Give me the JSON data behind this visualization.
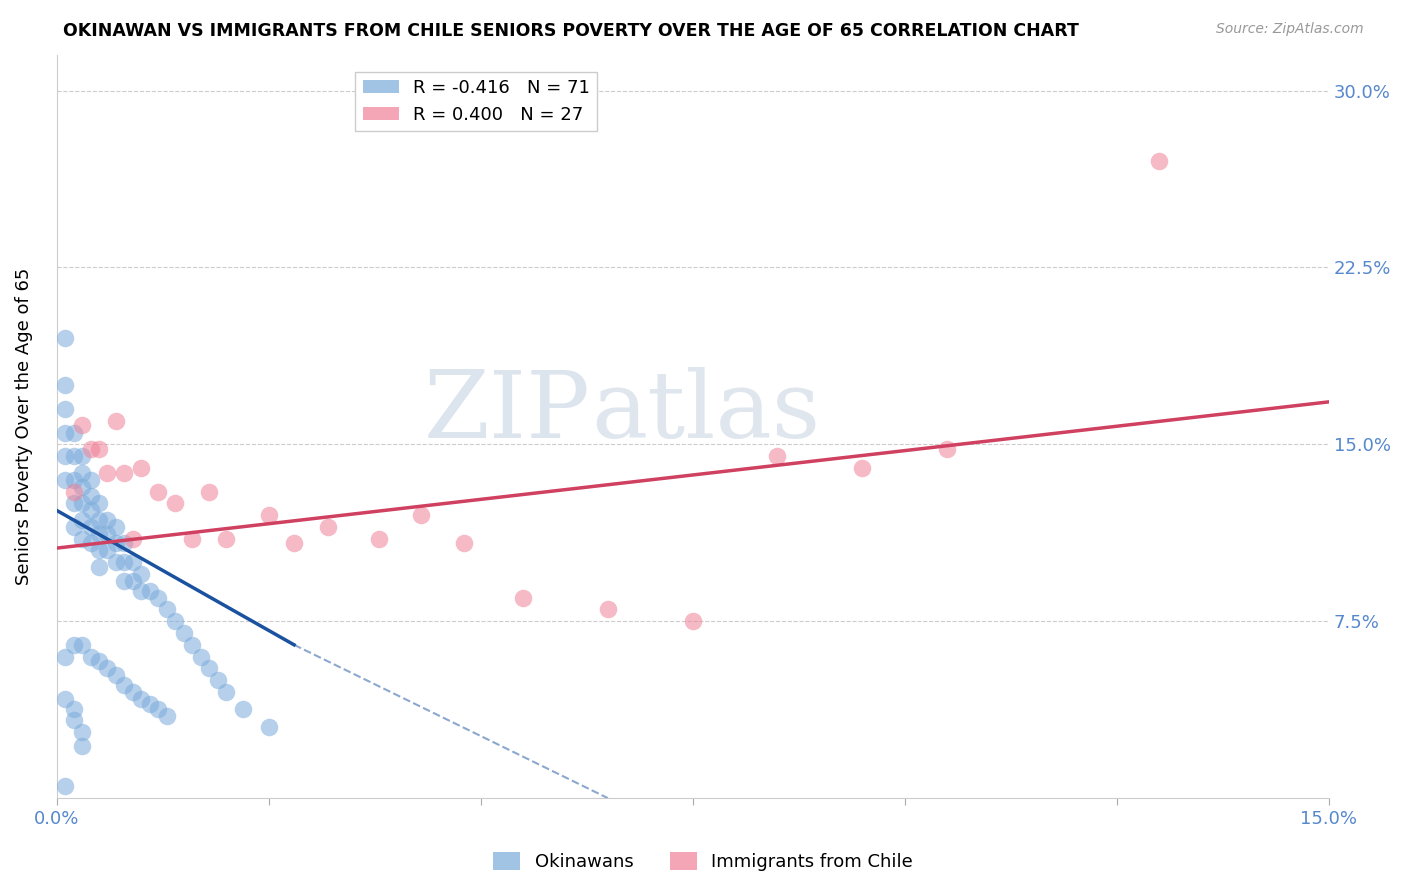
{
  "title": "OKINAWAN VS IMMIGRANTS FROM CHILE SENIORS POVERTY OVER THE AGE OF 65 CORRELATION CHART",
  "source": "Source: ZipAtlas.com",
  "ylabel": "Seniors Poverty Over the Age of 65",
  "xlim": [
    0.0,
    0.15
  ],
  "ylim": [
    0.0,
    0.315
  ],
  "xticks": [
    0.0,
    0.025,
    0.05,
    0.075,
    0.1,
    0.125,
    0.15
  ],
  "yticks": [
    0.0,
    0.075,
    0.15,
    0.225,
    0.3
  ],
  "ytick_labels": [
    "",
    "7.5%",
    "15.0%",
    "22.5%",
    "30.0%"
  ],
  "xtick_labels": [
    "0.0%",
    "",
    "",
    "",
    "",
    "",
    "15.0%"
  ],
  "legend_entries": [
    {
      "label": "R = -0.416   N = 71",
      "color": "#a8c4e0"
    },
    {
      "label": "R = 0.400   N = 27",
      "color": "#f4a0b0"
    }
  ],
  "okinawan_color": "#7aabdb",
  "chile_color": "#f08098",
  "okinawan_line_color": "#1a52a0",
  "chile_line_color": "#d04060",
  "watermark_zip": "ZIP",
  "watermark_atlas": "atlas",
  "ok_line_x0": 0.0,
  "ok_line_y0": 0.122,
  "ok_line_x1": 0.028,
  "ok_line_y1": 0.065,
  "ok_line_dash_x1": 0.065,
  "ok_line_dash_y1": 0.0,
  "ch_line_x0": 0.0,
  "ch_line_y0": 0.106,
  "ch_line_x1": 0.15,
  "ch_line_y1": 0.168,
  "okinawan_x": [
    0.001,
    0.001,
    0.001,
    0.001,
    0.001,
    0.001,
    0.001,
    0.002,
    0.002,
    0.002,
    0.002,
    0.002,
    0.002,
    0.003,
    0.003,
    0.003,
    0.003,
    0.003,
    0.003,
    0.003,
    0.004,
    0.004,
    0.004,
    0.004,
    0.004,
    0.004,
    0.005,
    0.005,
    0.005,
    0.005,
    0.005,
    0.005,
    0.006,
    0.006,
    0.006,
    0.006,
    0.007,
    0.007,
    0.007,
    0.007,
    0.008,
    0.008,
    0.008,
    0.008,
    0.009,
    0.009,
    0.009,
    0.01,
    0.01,
    0.01,
    0.011,
    0.011,
    0.012,
    0.012,
    0.013,
    0.013,
    0.014,
    0.015,
    0.016,
    0.017,
    0.018,
    0.019,
    0.02,
    0.022,
    0.025,
    0.001,
    0.002,
    0.002,
    0.003,
    0.003,
    0.001
  ],
  "okinawan_y": [
    0.195,
    0.175,
    0.165,
    0.155,
    0.145,
    0.135,
    0.06,
    0.155,
    0.145,
    0.135,
    0.125,
    0.115,
    0.065,
    0.145,
    0.138,
    0.132,
    0.125,
    0.118,
    0.11,
    0.065,
    0.135,
    0.128,
    0.122,
    0.115,
    0.108,
    0.06,
    0.125,
    0.118,
    0.112,
    0.105,
    0.098,
    0.058,
    0.118,
    0.112,
    0.105,
    0.055,
    0.115,
    0.108,
    0.1,
    0.052,
    0.108,
    0.1,
    0.092,
    0.048,
    0.1,
    0.092,
    0.045,
    0.095,
    0.088,
    0.042,
    0.088,
    0.04,
    0.085,
    0.038,
    0.08,
    0.035,
    0.075,
    0.07,
    0.065,
    0.06,
    0.055,
    0.05,
    0.045,
    0.038,
    0.03,
    0.042,
    0.038,
    0.033,
    0.028,
    0.022,
    0.005
  ],
  "chile_x": [
    0.002,
    0.003,
    0.004,
    0.005,
    0.006,
    0.007,
    0.008,
    0.009,
    0.01,
    0.012,
    0.014,
    0.016,
    0.018,
    0.02,
    0.025,
    0.028,
    0.032,
    0.038,
    0.043,
    0.048,
    0.055,
    0.065,
    0.075,
    0.085,
    0.095,
    0.105,
    0.13
  ],
  "chile_y": [
    0.13,
    0.158,
    0.148,
    0.148,
    0.138,
    0.16,
    0.138,
    0.11,
    0.14,
    0.13,
    0.125,
    0.11,
    0.13,
    0.11,
    0.12,
    0.108,
    0.115,
    0.11,
    0.12,
    0.108,
    0.085,
    0.08,
    0.075,
    0.145,
    0.14,
    0.148,
    0.27
  ]
}
